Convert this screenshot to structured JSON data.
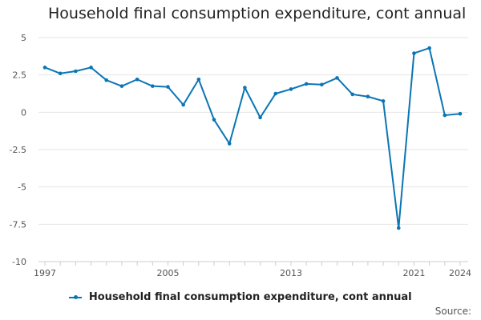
{
  "chart_data": {
    "type": "line",
    "title": "Household final consumption expenditure, cont annual",
    "x": [
      1997,
      1998,
      1999,
      2000,
      2001,
      2002,
      2003,
      2004,
      2005,
      2006,
      2007,
      2008,
      2009,
      2010,
      2011,
      2012,
      2013,
      2014,
      2015,
      2016,
      2017,
      2018,
      2019,
      2020,
      2021,
      2022,
      2023,
      2024
    ],
    "series": [
      {
        "name": "Household final consumption expenditure, cont annual",
        "color": "#0a75b5",
        "values": [
          3.0,
          2.6,
          2.75,
          3.0,
          2.15,
          1.75,
          2.2,
          1.75,
          1.7,
          0.5,
          2.2,
          -0.5,
          -2.1,
          1.65,
          -0.35,
          1.25,
          1.55,
          1.9,
          1.85,
          2.3,
          1.2,
          1.05,
          0.75,
          -7.75,
          3.95,
          4.3,
          -0.2,
          -0.1
        ]
      }
    ],
    "x_tick_labels": [
      "1997",
      "2005",
      "2013",
      "2021",
      "2024"
    ],
    "x_tick_values": [
      1997,
      2005,
      2013,
      2021,
      2024
    ],
    "y_tick_labels": [
      "5",
      "2.5",
      "0",
      "-2.5",
      "-5",
      "-7.5",
      "-10"
    ],
    "y_tick_values": [
      5,
      2.5,
      0,
      -2.5,
      -5,
      -7.5,
      -10
    ],
    "ylim": [
      -10,
      5
    ],
    "xlim": [
      1997,
      2024
    ],
    "xlabel": "",
    "ylabel": "",
    "grid": true,
    "legend_position": "bottom-center"
  },
  "legend": {
    "label": "Household final consumption expenditure, cont annual"
  },
  "footer": {
    "source_label": "Source:"
  },
  "colors": {
    "line": "#0a75b5",
    "grid": "#e6e6e6",
    "axis": "#cccccc",
    "tick_text": "#555555"
  }
}
